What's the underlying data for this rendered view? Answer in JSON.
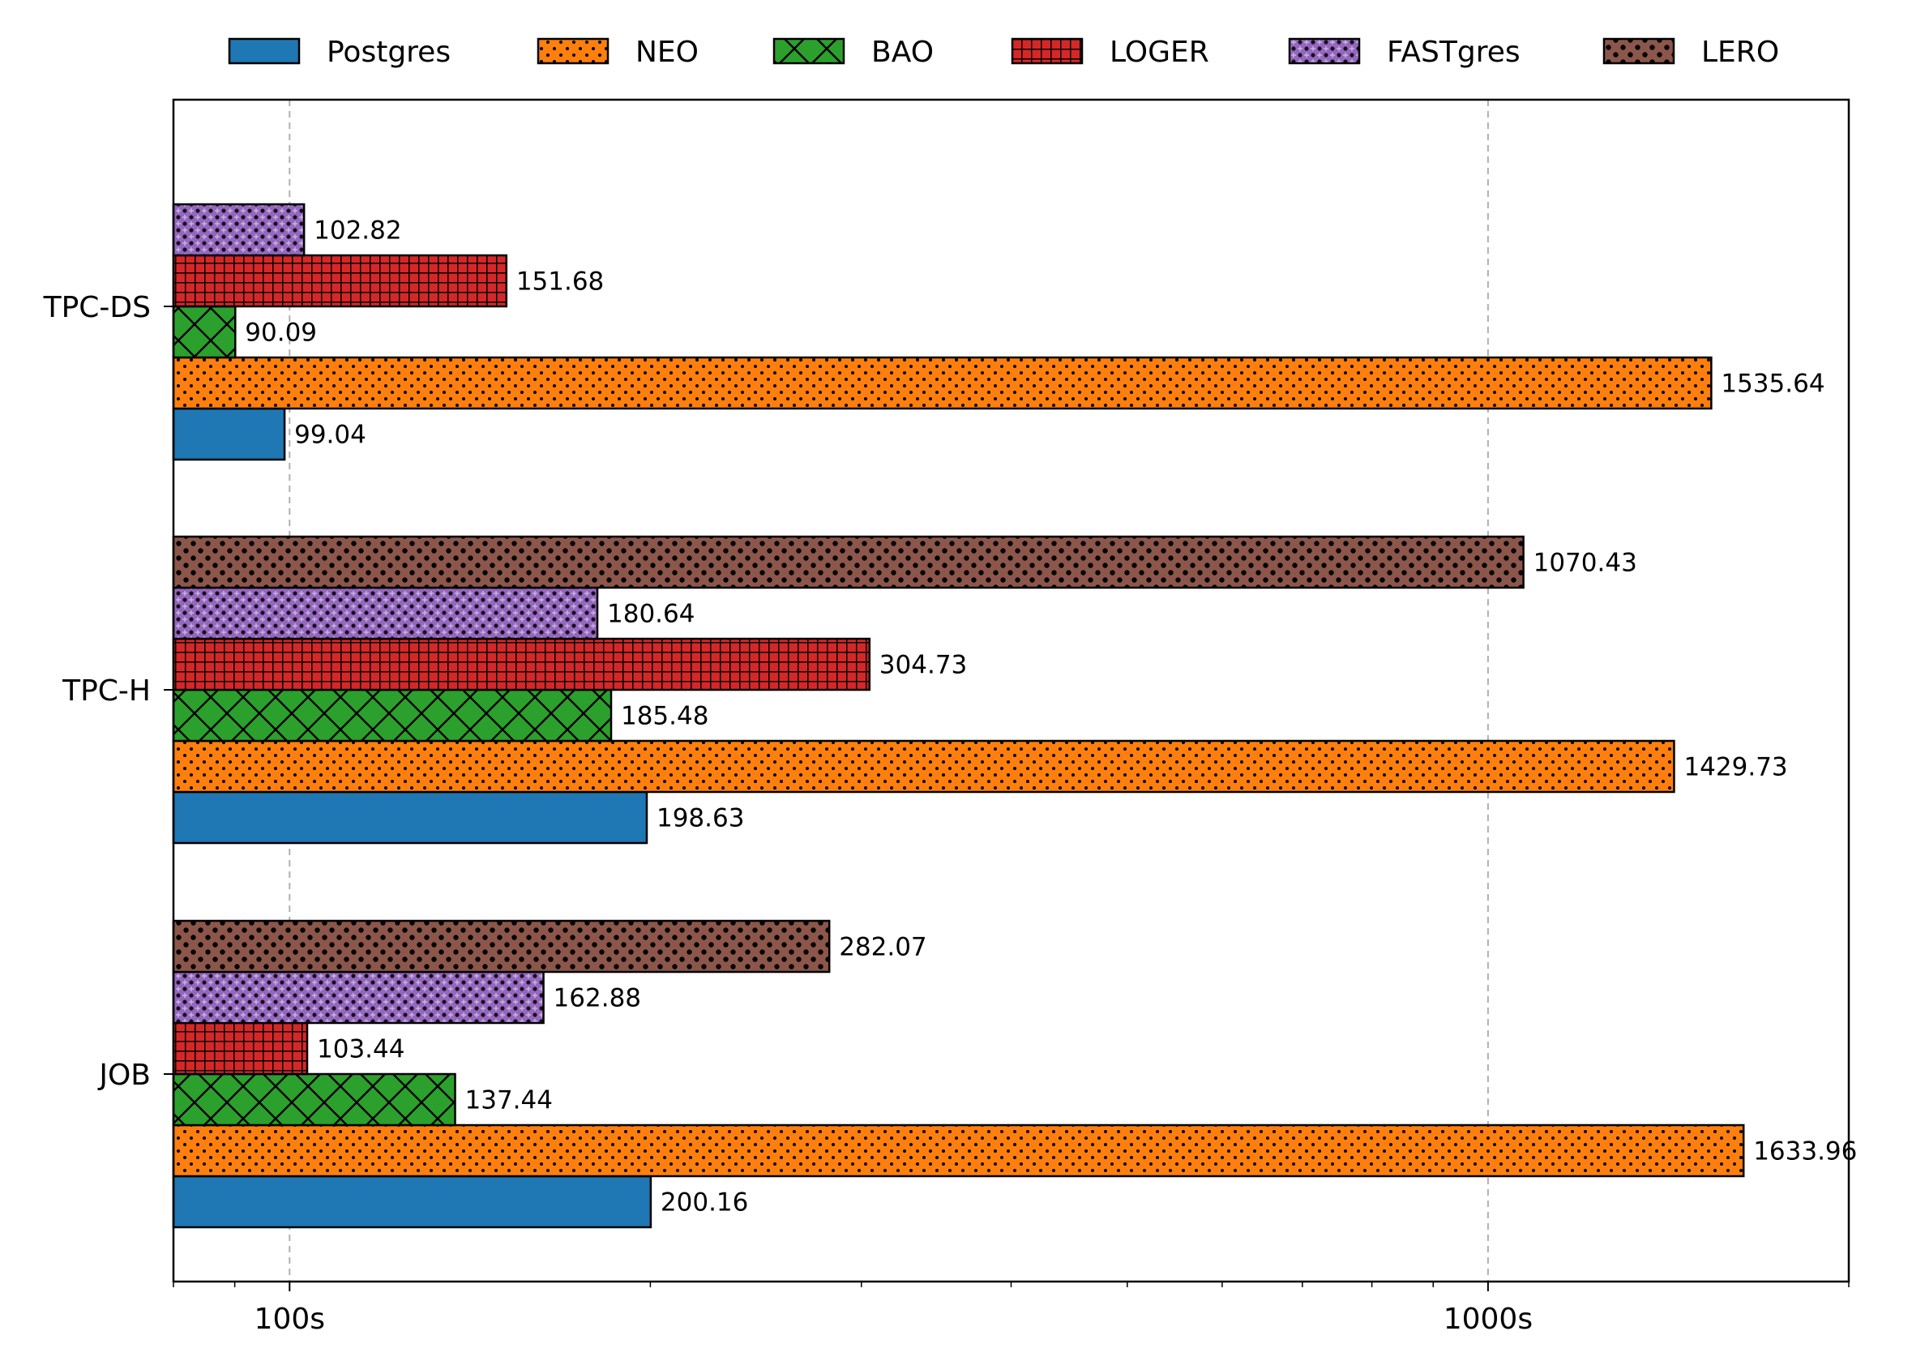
{
  "chart_data": {
    "type": "bar",
    "orientation": "horizontal",
    "x_scale": "log",
    "xlim": [
      80,
      2000
    ],
    "grid": "x-major",
    "legend_position": "top",
    "title": "",
    "xlabel": "",
    "ylabel": "",
    "x_tick_labels": [
      {
        "value": 100,
        "label": "100s"
      },
      {
        "value": 1000,
        "label": "1000s"
      }
    ],
    "categories": [
      "TPC-DS",
      "TPC-H",
      "JOB"
    ],
    "series": [
      {
        "name": "Postgres",
        "color": "#1f77b4",
        "pattern": "none",
        "values": [
          99.04,
          198.63,
          200.16
        ],
        "labels": [
          "99.04",
          "198.63",
          "200.16"
        ]
      },
      {
        "name": "NEO",
        "color": "#ff7f0e",
        "pattern": "dots",
        "values": [
          1535.64,
          1429.73,
          1633.96
        ],
        "labels": [
          "1535.64",
          "1429.73",
          "1633.96"
        ]
      },
      {
        "name": "BAO",
        "color": "#2ca02c",
        "pattern": "crosshatch",
        "values": [
          90.09,
          185.48,
          137.44
        ],
        "labels": [
          "90.09",
          "185.48",
          "137.44"
        ]
      },
      {
        "name": "LOGER",
        "color": "#d62728",
        "pattern": "grid",
        "values": [
          151.68,
          304.73,
          103.44
        ],
        "labels": [
          "151.68",
          "304.73",
          "103.44"
        ]
      },
      {
        "name": "FASTgres",
        "color": "#9467bd",
        "pattern": "plus-dots",
        "values": [
          102.82,
          180.64,
          162.88
        ],
        "labels": [
          "102.82",
          "180.64",
          "162.88"
        ]
      },
      {
        "name": "LERO",
        "color": "#8c564b",
        "pattern": "big-dots",
        "values": [
          null,
          1070.43,
          282.07
        ],
        "labels": [
          "",
          "1070.43",
          "282.07"
        ]
      }
    ]
  }
}
